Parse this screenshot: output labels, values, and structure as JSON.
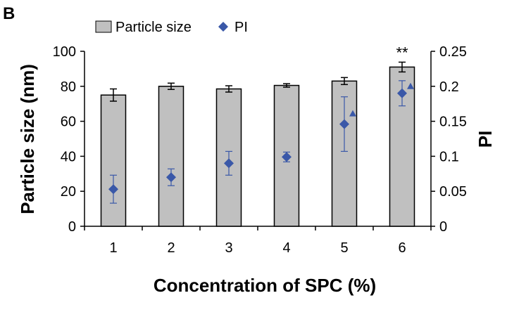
{
  "panel_label": "B",
  "chart_data": {
    "type": "bar",
    "categories": [
      "1",
      "2",
      "3",
      "4",
      "5",
      "6"
    ],
    "xlabel": "Concentration of SPC (%)",
    "ylabel": "Particle size (nm)",
    "y2label": "PI",
    "ylim": [
      0,
      100
    ],
    "y2lim": [
      0,
      0.25
    ],
    "yticks": [
      "0",
      "20",
      "40",
      "60",
      "80",
      "100"
    ],
    "y2ticks": [
      "0",
      "0.05",
      "0.1",
      "0.15",
      "0.2",
      "0.25"
    ],
    "legend": {
      "placement": "top-center",
      "entries": [
        "Particle size",
        "PI"
      ]
    },
    "series": [
      {
        "name": "Particle size",
        "kind": "bar",
        "axis": "left",
        "values": [
          75,
          80,
          78.5,
          80.5,
          83,
          91
        ],
        "errors": [
          3.5,
          1.8,
          1.8,
          1.0,
          2.0,
          2.8
        ],
        "color": "#c0c0c0"
      },
      {
        "name": "PI",
        "kind": "marker",
        "axis": "right",
        "values": [
          0.053,
          0.07,
          0.09,
          0.099,
          0.146,
          0.19
        ],
        "errors": [
          0.02,
          0.012,
          0.017,
          0.007,
          0.039,
          0.018
        ],
        "color": "#3a58a8"
      }
    ],
    "annotations": [
      {
        "category": "6",
        "text": "**"
      },
      {
        "category": "5",
        "marker": "triangle",
        "value": 0.161
      },
      {
        "category": "6",
        "marker": "triangle",
        "value": 0.2
      }
    ]
  }
}
